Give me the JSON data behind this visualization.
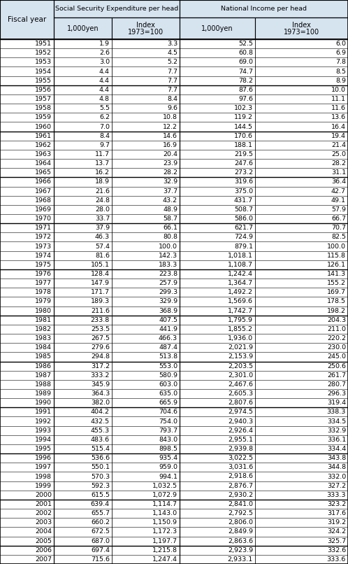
{
  "header_bg": "#d6e4f0",
  "rows": [
    [
      "1951",
      "1.9",
      "3.3",
      "52.5",
      "6.0"
    ],
    [
      "1952",
      "2.6",
      "4.5",
      "60.8",
      "6.9"
    ],
    [
      "1953",
      "3.0",
      "5.2",
      "69.0",
      "7.8"
    ],
    [
      "1954",
      "4.4",
      "7.7",
      "74.7",
      "8.5"
    ],
    [
      "1955",
      "4.4",
      "7.7",
      "78.2",
      "8.9"
    ],
    [
      "1956",
      "4.4",
      "7.7",
      "87.6",
      "10.0"
    ],
    [
      "1957",
      "4.8",
      "8.4",
      "97.6",
      "11.1"
    ],
    [
      "1958",
      "5.5",
      "9.6",
      "102.3",
      "11.6"
    ],
    [
      "1959",
      "6.2",
      "10.8",
      "119.2",
      "13.6"
    ],
    [
      "1960",
      "7.0",
      "12.2",
      "144.5",
      "16.4"
    ],
    [
      "1961",
      "8.4",
      "14.6",
      "170.6",
      "19.4"
    ],
    [
      "1962",
      "9.7",
      "16.9",
      "188.1",
      "21.4"
    ],
    [
      "1963",
      "11.7",
      "20.4",
      "219.5",
      "25.0"
    ],
    [
      "1964",
      "13.7",
      "23.9",
      "247.6",
      "28.2"
    ],
    [
      "1965",
      "16.2",
      "28.2",
      "273.2",
      "31.1"
    ],
    [
      "1966",
      "18.9",
      "32.9",
      "319.6",
      "36.4"
    ],
    [
      "1967",
      "21.6",
      "37.7",
      "375.0",
      "42.7"
    ],
    [
      "1968",
      "24.8",
      "43.2",
      "431.7",
      "49.1"
    ],
    [
      "1969",
      "28.0",
      "48.9",
      "508.7",
      "57.9"
    ],
    [
      "1970",
      "33.7",
      "58.7",
      "586.0",
      "66.7"
    ],
    [
      "1971",
      "37.9",
      "66.1",
      "621.7",
      "70.7"
    ],
    [
      "1972",
      "46.3",
      "80.8",
      "724.9",
      "82.5"
    ],
    [
      "1973",
      "57.4",
      "100.0",
      "879.1",
      "100.0"
    ],
    [
      "1974",
      "81.6",
      "142.3",
      "1,018.1",
      "115.8"
    ],
    [
      "1975",
      "105.1",
      "183.3",
      "1,108.7",
      "126.1"
    ],
    [
      "1976",
      "128.4",
      "223.8",
      "1,242.4",
      "141.3"
    ],
    [
      "1977",
      "147.9",
      "257.9",
      "1,364.7",
      "155.2"
    ],
    [
      "1978",
      "171.7",
      "299.3",
      "1,492.2",
      "169.7"
    ],
    [
      "1979",
      "189.3",
      "329.9",
      "1,569.6",
      "178.5"
    ],
    [
      "1980",
      "211.6",
      "368.9",
      "1,742.7",
      "198.2"
    ],
    [
      "1981",
      "233.8",
      "407.5",
      "1,795.9",
      "204.3"
    ],
    [
      "1982",
      "253.5",
      "441.9",
      "1,855.2",
      "211.0"
    ],
    [
      "1983",
      "267.5",
      "466.3",
      "1,936.0",
      "220.2"
    ],
    [
      "1984",
      "279.6",
      "487.4",
      "2,021.9",
      "230.0"
    ],
    [
      "1985",
      "294.8",
      "513.8",
      "2,153.9",
      "245.0"
    ],
    [
      "1986",
      "317.2",
      "553.0",
      "2,203.5",
      "250.6"
    ],
    [
      "1987",
      "333.2",
      "580.9",
      "2,301.0",
      "261.7"
    ],
    [
      "1988",
      "345.9",
      "603.0",
      "2,467.6",
      "280.7"
    ],
    [
      "1989",
      "364.3",
      "635.0",
      "2,605.3",
      "296.3"
    ],
    [
      "1990",
      "382.0",
      "665.9",
      "2,807.6",
      "319.4"
    ],
    [
      "1991",
      "404.2",
      "704.6",
      "2,974.5",
      "338.3"
    ],
    [
      "1992",
      "432.5",
      "754.0",
      "2,940.3",
      "334.5"
    ],
    [
      "1993",
      "455.3",
      "793.7",
      "2,926.4",
      "332.9"
    ],
    [
      "1994",
      "483.6",
      "843.0",
      "2,955.1",
      "336.1"
    ],
    [
      "1995",
      "515.4",
      "898.5",
      "2,939.8",
      "334.4"
    ],
    [
      "1996",
      "536.6",
      "935.4",
      "3,022.5",
      "343.8"
    ],
    [
      "1997",
      "550.1",
      "959.0",
      "3,031.6",
      "344.8"
    ],
    [
      "1998",
      "570.3",
      "994.1",
      "2,918.6",
      "332.0"
    ],
    [
      "1999",
      "592.3",
      "1,032.5",
      "2,876.7",
      "327.2"
    ],
    [
      "2000",
      "615.5",
      "1,072.9",
      "2,930.2",
      "333.3"
    ],
    [
      "2001",
      "639.4",
      "1,114.7",
      "2,841.0",
      "323.2"
    ],
    [
      "2002",
      "655.7",
      "1,143.0",
      "2,792.5",
      "317.6"
    ],
    [
      "2003",
      "660.2",
      "1,150.9",
      "2,806.0",
      "319.2"
    ],
    [
      "2004",
      "672.5",
      "1,172.3",
      "2,849.9",
      "324.2"
    ],
    [
      "2005",
      "687.0",
      "1,197.7",
      "2,863.6",
      "325.7"
    ],
    [
      "2006",
      "697.4",
      "1,215.8",
      "2,923.9",
      "332.6"
    ],
    [
      "2007",
      "715.6",
      "1,247.4",
      "2,933.1",
      "333.6"
    ]
  ],
  "group_starts": [
    0,
    5,
    10,
    15,
    20,
    25,
    30,
    35,
    40,
    45,
    50,
    55
  ],
  "group_header1": "Social Security Expenditure per head",
  "group_header2": "National Income per head",
  "col0_label": "Fiscal year",
  "col12_label": "1,000yen",
  "col13_label": "Index",
  "col13_label2": "1973=100",
  "col34_label": "1,000yen",
  "col35_label": "Index",
  "col35_label2": "1973=100"
}
